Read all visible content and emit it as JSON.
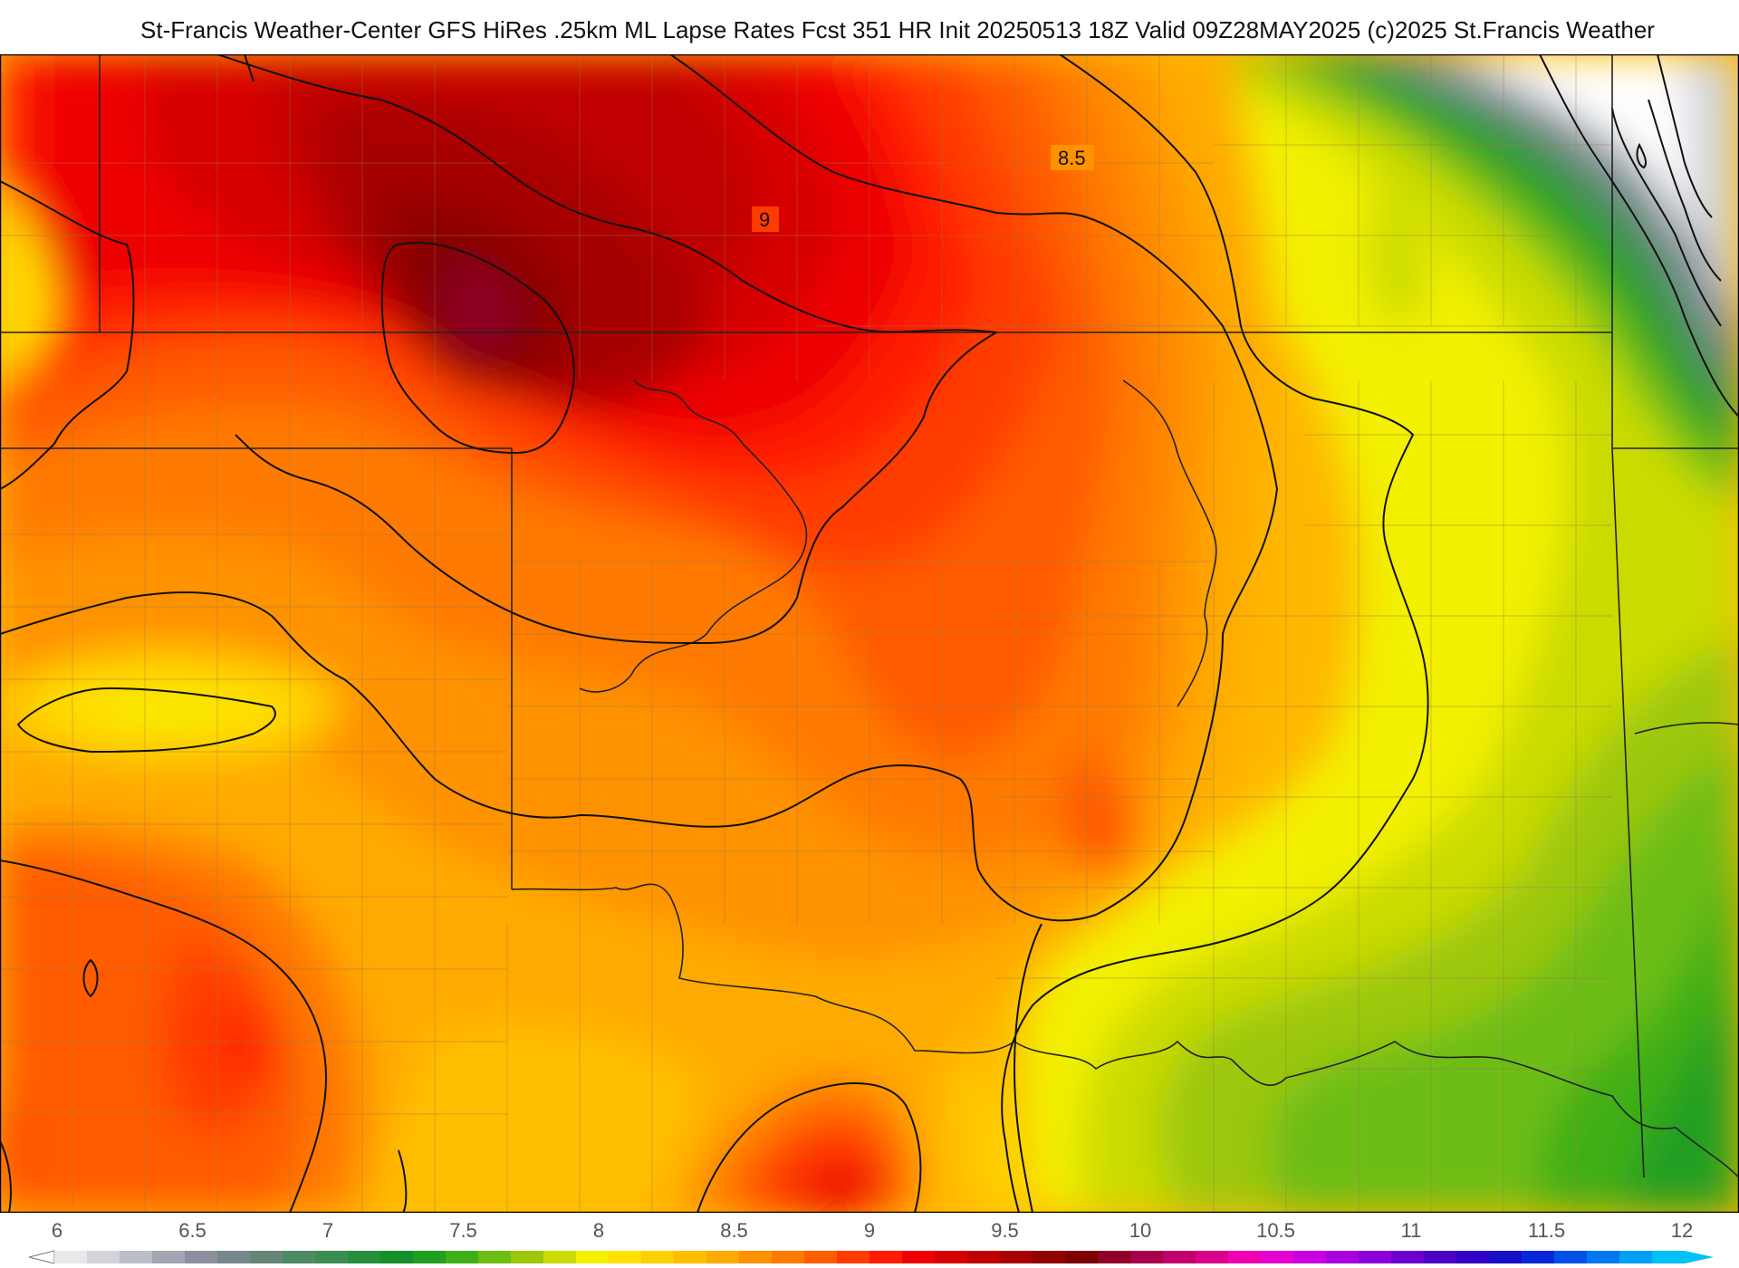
{
  "title": "St-Francis Weather-Center GFS HiRes .25km ML Lapse Rates  Fcst 351 HR Init 20250513 18Z  Valid 09Z28MAY2025    (c)2025 St.Francis Weather",
  "map": {
    "contour_labels": [
      "8.5",
      "9"
    ]
  },
  "colorbar": {
    "ticks": [
      "6",
      "6.5",
      "7",
      "7.5",
      "8",
      "8.5",
      "9",
      "9.5",
      "10",
      "10.5",
      "11",
      "11.5",
      "12"
    ],
    "min": 6,
    "max": 12,
    "step": 0.25,
    "colors": [
      "#e8e8ea",
      "#d2d4da",
      "#b9bdc7",
      "#a1a6b2",
      "#8a909d",
      "#77868b",
      "#658677",
      "#4f8a66",
      "#3b8d52",
      "#278f3c",
      "#139029",
      "#209f20",
      "#3faf18",
      "#6dbd12",
      "#9cc80c",
      "#cadb06",
      "#f3f000",
      "#ffe000",
      "#ffd000",
      "#ffbf00",
      "#ffaa00",
      "#ff9200",
      "#ff7a00",
      "#ff5c00",
      "#ff3c00",
      "#ff1a00",
      "#ee0000",
      "#d70000",
      "#c00000",
      "#a80000",
      "#920000",
      "#7d0000",
      "#900028",
      "#a8004a",
      "#c2006c",
      "#da008c",
      "#f000b0",
      "#e400d0",
      "#c800e0",
      "#aa00e0",
      "#8c00dc",
      "#6c00d2",
      "#4c00c8",
      "#3000c4",
      "#1810c8",
      "#0828d8",
      "#0050e8",
      "#0078f0",
      "#00a0f4",
      "#00c0f8"
    ]
  }
}
